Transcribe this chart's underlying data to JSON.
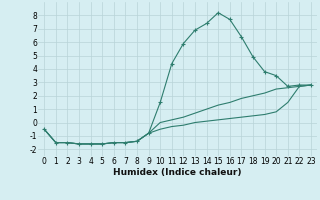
{
  "xlabel": "Humidex (Indice chaleur)",
  "x": [
    0,
    1,
    2,
    3,
    4,
    5,
    6,
    7,
    8,
    9,
    10,
    11,
    12,
    13,
    14,
    15,
    16,
    17,
    18,
    19,
    20,
    21,
    22,
    23
  ],
  "line1": [
    -0.5,
    -1.5,
    -1.5,
    -1.6,
    -1.6,
    -1.6,
    -1.5,
    -1.5,
    -1.4,
    -0.8,
    1.5,
    4.4,
    5.9,
    6.9,
    7.4,
    8.2,
    7.7,
    6.4,
    4.9,
    3.8,
    3.5,
    2.7,
    2.8,
    2.8
  ],
  "line2": [
    -0.5,
    -1.5,
    -1.5,
    -1.6,
    -1.6,
    -1.6,
    -1.5,
    -1.5,
    -1.4,
    -0.8,
    0.0,
    0.2,
    0.4,
    0.7,
    1.0,
    1.3,
    1.5,
    1.8,
    2.0,
    2.2,
    2.5,
    2.6,
    2.7,
    2.8
  ],
  "line3": [
    -0.5,
    -1.5,
    -1.5,
    -1.6,
    -1.6,
    -1.6,
    -1.5,
    -1.5,
    -1.4,
    -0.8,
    -0.5,
    -0.3,
    -0.2,
    0.0,
    0.1,
    0.2,
    0.3,
    0.4,
    0.5,
    0.6,
    0.8,
    1.5,
    2.7,
    2.8
  ],
  "color": "#2e7d6e",
  "bg_color": "#d6eef2",
  "grid_color": "#b8d4d8",
  "ylim": [
    -2.5,
    9.0
  ],
  "xlim": [
    -0.5,
    23.5
  ],
  "yticks": [
    -2,
    -1,
    0,
    1,
    2,
    3,
    4,
    5,
    6,
    7,
    8
  ],
  "xticks": [
    0,
    1,
    2,
    3,
    4,
    5,
    6,
    7,
    8,
    9,
    10,
    11,
    12,
    13,
    14,
    15,
    16,
    17,
    18,
    19,
    20,
    21,
    22,
    23
  ],
  "tick_fontsize": 5.5,
  "xlabel_fontsize": 6.5
}
